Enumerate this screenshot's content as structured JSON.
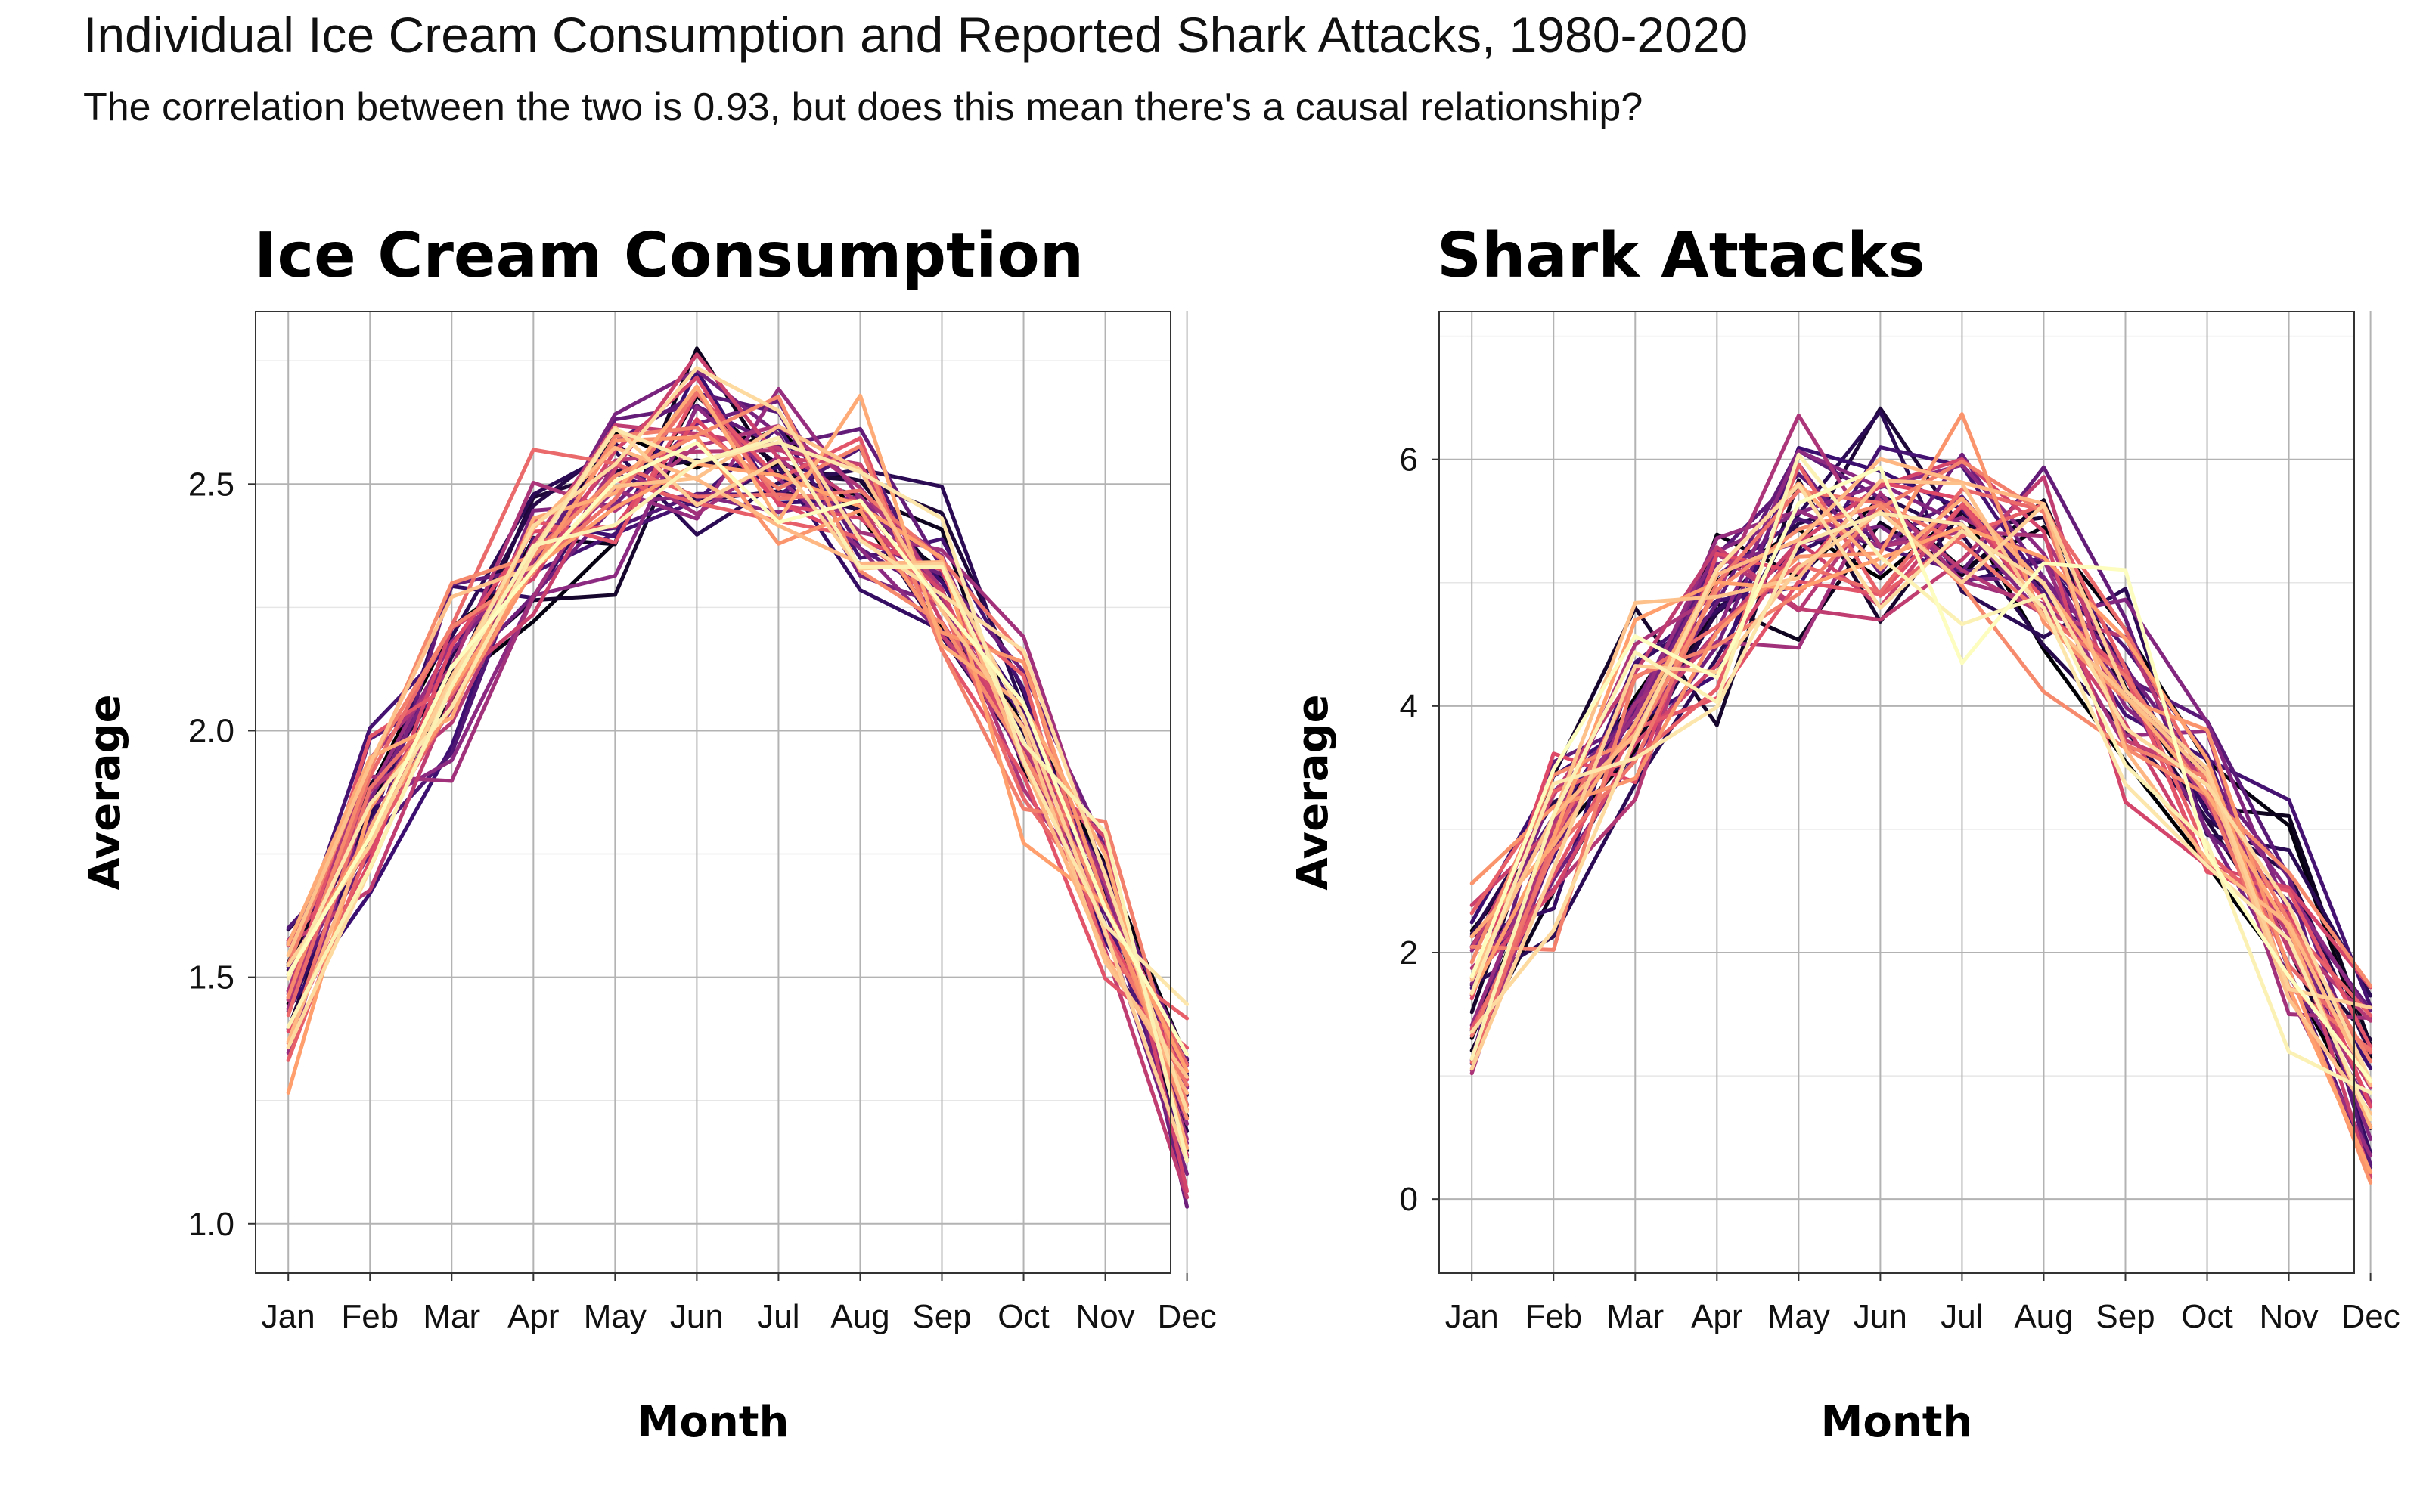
{
  "title": "Individual Ice Cream Consumption and Reported Shark Attacks, 1980-2020",
  "subtitle": "The correlation between the two is 0.93, but does this mean there's a causal relationship?",
  "chart_data": [
    {
      "type": "line",
      "title": "Ice Cream Consumption",
      "xlabel": "Month",
      "ylabel": "Average",
      "categories": [
        "Jan",
        "Feb",
        "Mar",
        "Apr",
        "May",
        "Jun",
        "Jul",
        "Aug",
        "Sep",
        "Oct",
        "Nov",
        "Dec"
      ],
      "ylim": [
        0.9,
        2.85
      ],
      "yticks": [
        1.0,
        1.5,
        2.0,
        2.5
      ],
      "ytick_labels": [
        "1.0",
        "1.5",
        "2.0",
        "2.5"
      ],
      "grid": true,
      "palette": "magma",
      "palette_colors": [
        "#000004",
        "#3b0f70",
        "#8c2981",
        "#de4968",
        "#fe9f6d",
        "#fcfdbf"
      ],
      "base_curve": [
        1.48,
        1.82,
        2.12,
        2.36,
        2.5,
        2.58,
        2.55,
        2.46,
        2.3,
        1.98,
        1.65,
        1.25
      ],
      "series_count": 41,
      "series_first_year": 1980
    },
    {
      "type": "line",
      "title": "Shark Attacks",
      "xlabel": "Month",
      "ylabel": "Average",
      "categories": [
        "Jan",
        "Feb",
        "Mar",
        "Apr",
        "May",
        "Jun",
        "Jul",
        "Aug",
        "Sep",
        "Oct",
        "Nov",
        "Dec"
      ],
      "ylim": [
        -0.6,
        7.2
      ],
      "yticks": [
        0,
        2,
        4,
        6
      ],
      "ytick_labels": [
        "0",
        "2",
        "4",
        "6"
      ],
      "grid": true,
      "palette": "magma",
      "palette_colors": [
        "#000004",
        "#3b0f70",
        "#8c2981",
        "#de4968",
        "#fe9f6d",
        "#fcfdbf"
      ],
      "base_curve": [
        1.7,
        2.9,
        3.9,
        4.7,
        5.3,
        5.5,
        5.4,
        5.1,
        4.2,
        3.2,
        2.2,
        0.9
      ],
      "series_count": 41,
      "series_first_year": 1980
    }
  ]
}
